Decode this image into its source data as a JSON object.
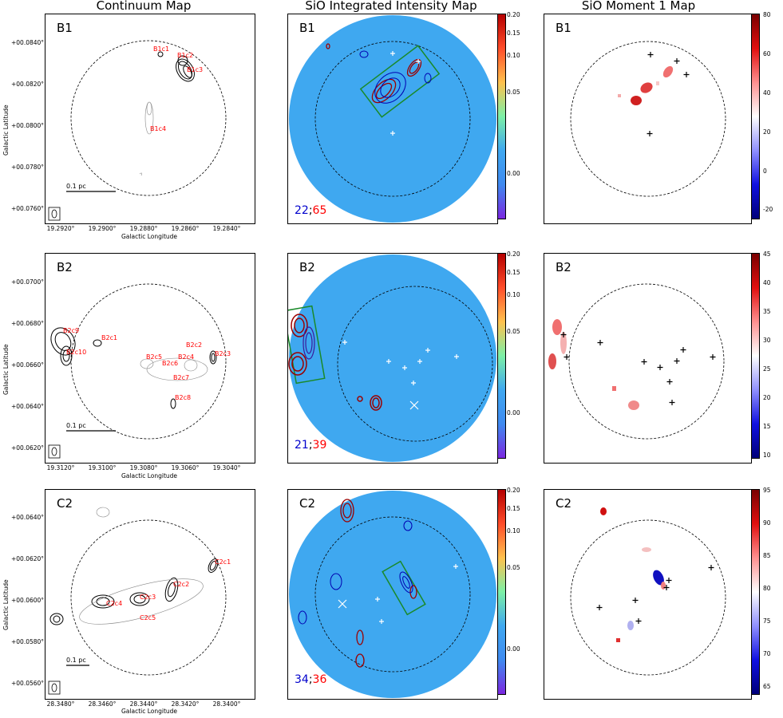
{
  "column_titles": [
    "Continuum Map",
    "SiO Integrated Intensity Map",
    "SiO Moment 1 Map"
  ],
  "axis_labels": {
    "galactic_latitude": "Galactic Latitude",
    "galactic_longitude": "Galactic Longitude"
  },
  "rows": [
    {
      "name": "B1",
      "continuum": {
        "yticks": [
          "+00.0840°",
          "+00.0820°",
          "+00.0800°",
          "+00.0780°",
          "+00.0760°"
        ],
        "xticks": [
          "19.2920°",
          "19.2900°",
          "19.2880°",
          "19.2860°",
          "19.2840°"
        ],
        "scalebar": "0.1 pc",
        "sources": [
          "B1c1",
          "B1c2",
          "B1c3",
          "B1c4"
        ]
      },
      "sio_counts": {
        "blue": "22",
        "red": "65"
      },
      "intensity_cbar": [
        "0.20",
        "0.15",
        "0.10",
        "0.05",
        "0.00"
      ],
      "moment_cbar": [
        "80",
        "60",
        "40",
        "20",
        "0",
        "-20"
      ]
    },
    {
      "name": "B2",
      "continuum": {
        "yticks": [
          "+00.0700°",
          "+00.0680°",
          "+00.0660°",
          "+00.0640°",
          "+00.0620°"
        ],
        "xticks": [
          "19.3120°",
          "19.3100°",
          "19.3080°",
          "19.3060°",
          "19.3040°"
        ],
        "scalebar": "0.1 pc",
        "sources": [
          "B2c9",
          "B2c10",
          "B2c1",
          "B2c2",
          "B2c5",
          "B2c4",
          "B2c6",
          "B2c7",
          "B2c8",
          "B2c3"
        ]
      },
      "sio_counts": {
        "blue": "21",
        "red": "39"
      },
      "intensity_cbar": [
        "0.20",
        "0.15",
        "0.10",
        "0.05",
        "0.00"
      ],
      "moment_cbar": [
        "45",
        "40",
        "35",
        "30",
        "25",
        "20",
        "15",
        "10"
      ]
    },
    {
      "name": "C2",
      "continuum": {
        "yticks": [
          "+00.0640°",
          "+00.0620°",
          "+00.0600°",
          "+00.0580°",
          "+00.0560°"
        ],
        "xticks": [
          "28.3480°",
          "28.3460°",
          "28.3440°",
          "28.3420°",
          "28.3400°"
        ],
        "scalebar": "0.1 pc",
        "sources": [
          "C2c1",
          "C2c2",
          "C2c3",
          "C2c4",
          "C2c5"
        ]
      },
      "sio_counts": {
        "blue": "34",
        "red": "36"
      },
      "intensity_cbar": [
        "0.20",
        "0.15",
        "0.10",
        "0.05",
        "0.00"
      ],
      "moment_cbar": [
        "95",
        "90",
        "85",
        "80",
        "75",
        "70",
        "65"
      ]
    }
  ],
  "colors": {
    "source_label": "#ff0000",
    "blue_count": "#0000cc",
    "red_count": "#ff0000",
    "map_fill": "#3fa8f0"
  }
}
